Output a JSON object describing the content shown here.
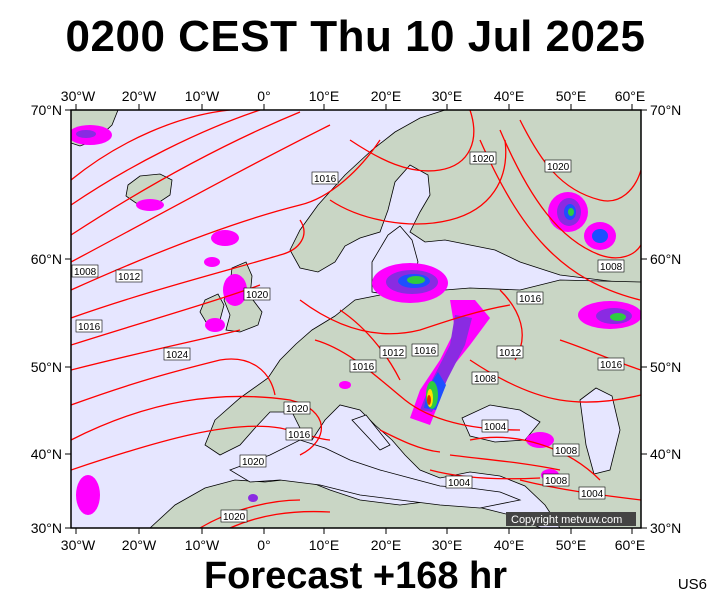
{
  "header": {
    "title": "0200 CEST Thu 10 Jul 2025"
  },
  "footer": {
    "forecast": "Forecast +168 hr",
    "model_code": "US6"
  },
  "map": {
    "copyright": "Copyright metvuw.com",
    "lon_ticks": [
      "30°W",
      "20°W",
      "10°W",
      "0°",
      "10°E",
      "20°E",
      "30°E",
      "40°E",
      "50°E",
      "60°E"
    ],
    "lat_ticks": [
      "70°N",
      "60°N",
      "50°N",
      "40°N",
      "30°N"
    ],
    "isobar_labels": [
      "1016",
      "1020",
      "1020",
      "1008",
      "1012",
      "1016",
      "1020",
      "1016",
      "1024",
      "1012",
      "1016",
      "1020",
      "1016",
      "1020",
      "1008",
      "1016",
      "1012",
      "1008",
      "1016",
      "1004",
      "1008",
      "1004",
      "1008",
      "1004",
      "1020"
    ],
    "colors": {
      "isobar": "#ff0000",
      "sea": "#e6e6ff",
      "land": "#c9d6c5",
      "precip_magenta": "#ff00ff",
      "precip_purple": "#8a2be2",
      "precip_blue": "#1e4fff",
      "precip_green": "#2ecc40",
      "precip_yellow": "#ffe000",
      "precip_red": "#e03000"
    }
  }
}
